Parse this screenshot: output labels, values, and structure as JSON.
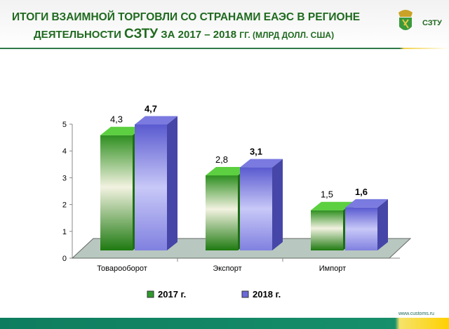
{
  "header": {
    "title_line1": "ИТОГИ ВЗАИМНОЙ ТОРГОВЛИ СО СТРАНАМИ ЕАЭС В РЕГИОНЕ",
    "title_line2_a": "ДЕЯТЕЛЬНОСТИ ",
    "title_line2_b": "СЗТУ",
    "title_line2_c": " ЗА 2017 – 2018 ",
    "title_line2_d": "ГГ. (МЛРД ДОЛЛ. США)",
    "org": "СЗТУ"
  },
  "footer": {
    "url": "www.customs.ru"
  },
  "chart_data": {
    "type": "bar",
    "categories": [
      "Товарооборот",
      "Экспорт",
      "Импорт"
    ],
    "series": [
      {
        "name": "2017 г.",
        "values": [
          4.3,
          2.8,
          1.5
        ],
        "labels": [
          "4,3",
          "2,8",
          "1,5"
        ],
        "color": "#2e9a2e"
      },
      {
        "name": "2018 г.",
        "values": [
          4.7,
          3.1,
          1.6
        ],
        "labels": [
          "4,7",
          "3,1",
          "1,6"
        ],
        "color": "#6a6ad8"
      }
    ],
    "ylim": [
      0,
      5
    ],
    "yticks": [
      "0",
      "1",
      "2",
      "3",
      "4",
      "5"
    ],
    "legend": "bottom",
    "grid": false,
    "style": "3d"
  }
}
